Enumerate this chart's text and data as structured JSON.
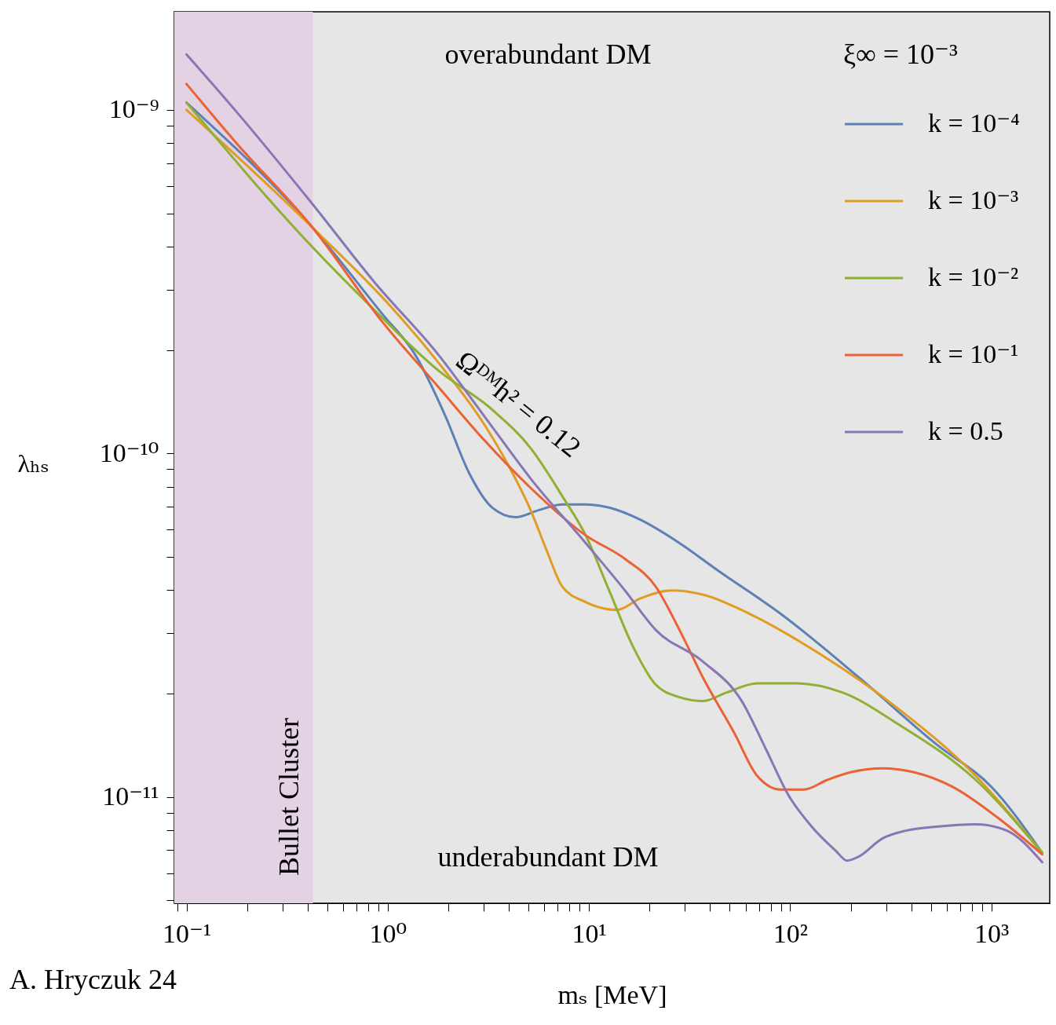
{
  "chart_data": {
    "type": "line",
    "xlabel": "mₛ [MeV]",
    "ylabel": "λₕₛ",
    "legend_title": "ξ∞ = 10⁻³",
    "legend": "top right",
    "log": "xy",
    "xlim": [
      0.087,
      1950
    ],
    "ylim": [
      4.9e-12,
      1.93e-09
    ],
    "xticks": [
      {
        "value": 0.09,
        "label": null
      },
      {
        "value": 0.1,
        "label": "10⁻¹"
      },
      {
        "value": 0.2,
        "label": null
      },
      {
        "value": 0.3,
        "label": null
      },
      {
        "value": 0.4,
        "label": null
      },
      {
        "value": 0.5,
        "label": null
      },
      {
        "value": 0.6,
        "label": null
      },
      {
        "value": 0.7,
        "label": null
      },
      {
        "value": 0.8,
        "label": null
      },
      {
        "value": 0.9,
        "label": null
      },
      {
        "value": 1,
        "label": "10⁰"
      },
      {
        "value": 2,
        "label": null
      },
      {
        "value": 3,
        "label": null
      },
      {
        "value": 4,
        "label": null
      },
      {
        "value": 5,
        "label": null
      },
      {
        "value": 6,
        "label": null
      },
      {
        "value": 7,
        "label": null
      },
      {
        "value": 8,
        "label": null
      },
      {
        "value": 9,
        "label": null
      },
      {
        "value": 10,
        "label": "10¹"
      },
      {
        "value": 20,
        "label": null
      },
      {
        "value": 30,
        "label": null
      },
      {
        "value": 40,
        "label": null
      },
      {
        "value": 50,
        "label": null
      },
      {
        "value": 60,
        "label": null
      },
      {
        "value": 70,
        "label": null
      },
      {
        "value": 80,
        "label": null
      },
      {
        "value": 90,
        "label": null
      },
      {
        "value": 100,
        "label": "10²"
      },
      {
        "value": 200,
        "label": null
      },
      {
        "value": 300,
        "label": null
      },
      {
        "value": 400,
        "label": null
      },
      {
        "value": 500,
        "label": null
      },
      {
        "value": 600,
        "label": null
      },
      {
        "value": 700,
        "label": null
      },
      {
        "value": 800,
        "label": null
      },
      {
        "value": 900,
        "label": null
      },
      {
        "value": 1000,
        "label": "10³"
      }
    ],
    "yticks": [
      {
        "value": 5e-12,
        "label": null
      },
      {
        "value": 6e-12,
        "label": null
      },
      {
        "value": 7e-12,
        "label": null
      },
      {
        "value": 8e-12,
        "label": null
      },
      {
        "value": 9e-12,
        "label": null
      },
      {
        "value": 1e-11,
        "label": "10⁻¹¹"
      },
      {
        "value": 2e-11,
        "label": null
      },
      {
        "value": 3e-11,
        "label": null
      },
      {
        "value": 4e-11,
        "label": null
      },
      {
        "value": 5e-11,
        "label": null
      },
      {
        "value": 6e-11,
        "label": null
      },
      {
        "value": 7e-11,
        "label": null
      },
      {
        "value": 8e-11,
        "label": null
      },
      {
        "value": 9e-11,
        "label": null
      },
      {
        "value": 1e-10,
        "label": "10⁻¹⁰"
      },
      {
        "value": 2e-10,
        "label": null
      },
      {
        "value": 3e-10,
        "label": null
      },
      {
        "value": 4e-10,
        "label": null
      },
      {
        "value": 5e-10,
        "label": null
      },
      {
        "value": 6e-10,
        "label": null
      },
      {
        "value": 7e-10,
        "label": null
      },
      {
        "value": 8e-10,
        "label": null
      },
      {
        "value": 9e-10,
        "label": null
      },
      {
        "value": 1e-09,
        "label": "10⁻⁹"
      }
    ],
    "series": [
      {
        "name": "k = 10⁻⁴",
        "color": "#5e81b5",
        "x": [
          0.1,
          0.425,
          0.948,
          1.36,
          1.94,
          2.53,
          3.31,
          4.32,
          5.65,
          7.38,
          9.64,
          12.6,
          18.0,
          28.2,
          44.0,
          89.8,
          219,
          535,
          1000,
          1790
        ],
        "values": [
          1.05e-09,
          4.53e-10,
          2.53e-10,
          1.95e-10,
          1.28e-10,
          8.8e-11,
          6.95e-11,
          6.52e-11,
          6.84e-11,
          7.1e-11,
          7.1e-11,
          6.95e-11,
          6.41e-11,
          5.48e-11,
          4.55e-11,
          3.41e-11,
          2.23e-11,
          1.42e-11,
          1.07e-11,
          6.87e-12
        ]
      },
      {
        "name": "k = 10⁻³",
        "color": "#e19c24",
        "x": [
          0.1,
          0.425,
          1.04,
          1.77,
          3.03,
          3.95,
          5.17,
          6.18,
          7.38,
          9.64,
          13.8,
          18.0,
          25.8,
          36.8,
          62.9,
          140,
          343,
          836,
          1790
        ],
        "values": [
          1e-09,
          4.53e-10,
          2.67e-10,
          1.85e-10,
          1.21e-10,
          9.3e-11,
          6.77e-11,
          5.2e-11,
          4.09e-11,
          3.69e-11,
          3.5e-11,
          3.78e-11,
          3.99e-11,
          3.88e-11,
          3.41e-11,
          2.61e-11,
          1.81e-11,
          1.15e-11,
          6.87e-12
        ]
      },
      {
        "name": "k = 10⁻²",
        "color": "#8fb032",
        "x": [
          0.1,
          0.425,
          0.867,
          1.77,
          3.31,
          5.17,
          7.38,
          9.64,
          12.6,
          16.5,
          21.5,
          28.2,
          36.8,
          48.1,
          68.7,
          107,
          183,
          343,
          836,
          1790
        ],
        "values": [
          1.05e-09,
          3.97e-10,
          2.6e-10,
          1.75e-10,
          1.34e-10,
          1.03e-10,
          7.5e-11,
          5.77e-11,
          3.99e-11,
          2.75e-11,
          2.12e-11,
          1.95e-11,
          1.9e-11,
          2.01e-11,
          2.14e-11,
          2.14e-11,
          2.01e-11,
          1.63e-11,
          1.12e-11,
          6.87e-12
        ]
      },
      {
        "name": "k = 10⁻¹",
        "color": "#eb6235",
        "x": [
          0.1,
          0.174,
          0.425,
          0.948,
          1.77,
          3.03,
          5.17,
          9.64,
          15.1,
          21.5,
          28.2,
          36.8,
          52.6,
          68.7,
          89.8,
          117,
          153,
          201,
          287,
          410,
          640,
          1094,
          1790
        ],
        "values": [
          1.19e-09,
          8.1e-10,
          4.53e-10,
          2.4e-10,
          1.57e-10,
          1.09e-10,
          7.9e-11,
          5.77e-11,
          4.93e-11,
          4.09e-11,
          3.06e-11,
          2.23e-11,
          1.54e-11,
          1.15e-11,
          1.05e-11,
          1.05e-11,
          1.12e-11,
          1.18e-11,
          1.21e-11,
          1.18e-11,
          1.07e-11,
          8.63e-12,
          6.8e-12
        ]
      },
      {
        "name": "k = 0.5",
        "color": "#8778b3",
        "x": [
          0.1,
          0.174,
          0.425,
          0.867,
          1.77,
          3.03,
          5.17,
          9.64,
          15.1,
          21.5,
          36.8,
          57.5,
          75.2,
          98.2,
          128,
          168,
          192,
          219,
          287,
          375,
          535,
          836,
          1196,
          1790
        ],
        "values": [
          1.45e-09,
          1e-09,
          5.3e-10,
          3.13e-10,
          1.95e-10,
          1.28e-10,
          8.4e-11,
          5.48e-11,
          3.99e-11,
          3.06e-11,
          2.48e-11,
          1.9e-11,
          1.39e-11,
          1.01e-11,
          8.19e-12,
          6.98e-12,
          6.52e-12,
          6.7e-12,
          7.56e-12,
          7.97e-12,
          8.19e-12,
          8.32e-12,
          7.97e-12,
          6.45e-12
        ]
      }
    ],
    "bands": [
      {
        "axis": "x",
        "from": 0.087,
        "to": 0.425,
        "label": "Bullet Cluster",
        "color": "#e2d2e4"
      }
    ],
    "annotations": [
      "overabundant DM",
      "underabundant DM",
      "Ωᴰᴹh² = 0.12",
      "A. Hryczuk 24"
    ]
  }
}
